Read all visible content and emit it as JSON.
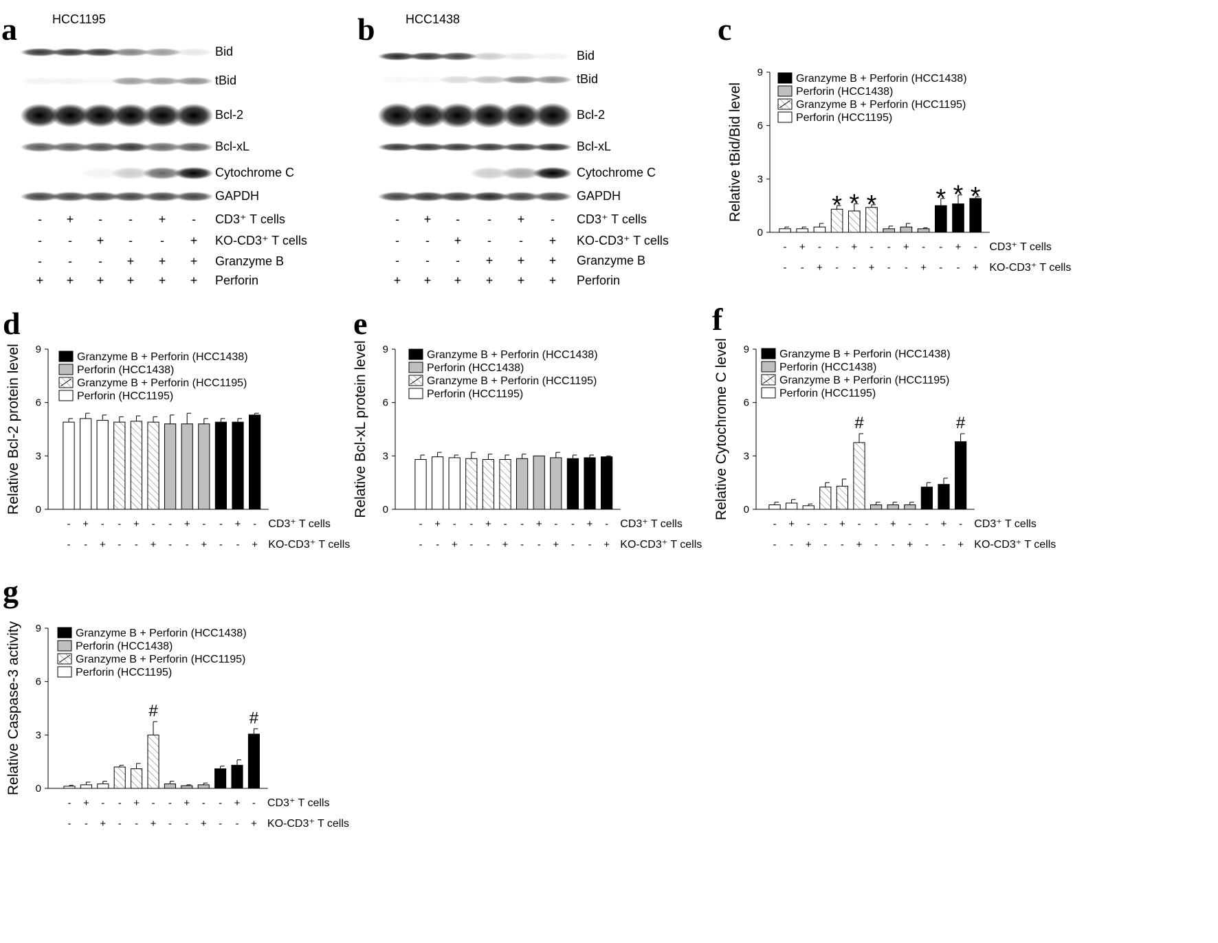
{
  "panel_labels": [
    "a",
    "b",
    "c",
    "d",
    "e",
    "f",
    "g"
  ],
  "blot_a": {
    "title": "HCC1195",
    "proteins": [
      "Bid",
      "tBid",
      "Bcl-2",
      "Bcl-xL",
      "Cytochrome C",
      "GAPDH"
    ],
    "intensities": [
      [
        0.8,
        0.8,
        0.8,
        0.5,
        0.4,
        0.1
      ],
      [
        0.05,
        0.05,
        0.03,
        0.4,
        0.4,
        0.45
      ],
      [
        1,
        1,
        1,
        1,
        1,
        1
      ],
      [
        0.65,
        0.65,
        0.7,
        0.8,
        0.6,
        0.65
      ],
      [
        0,
        0,
        0.05,
        0.2,
        0.6,
        1
      ],
      [
        0.75,
        0.75,
        0.75,
        0.75,
        0.75,
        0.75
      ]
    ],
    "rows": [
      {
        "label": "CD3⁺ T cells",
        "signs": [
          "-",
          "+",
          "-",
          "-",
          "+",
          "-"
        ]
      },
      {
        "label": "KO-CD3⁺ T cells",
        "signs": [
          "-",
          "-",
          "+",
          "-",
          "-",
          "+"
        ]
      },
      {
        "label": "Granzyme  B",
        "signs": [
          "-",
          "-",
          "-",
          "+",
          "+",
          "+"
        ]
      },
      {
        "label": "Perforin",
        "signs": [
          "+",
          "+",
          "+",
          "+",
          "+",
          "+"
        ]
      }
    ]
  },
  "blot_b": {
    "title": "HCC1438",
    "proteins": [
      "Bid",
      "tBid",
      "Bcl-2",
      "Bcl-xL",
      "Cytochrome C",
      "GAPDH"
    ],
    "intensities": [
      [
        0.85,
        0.8,
        0.75,
        0.2,
        0.1,
        0.05
      ],
      [
        0.03,
        0.03,
        0.15,
        0.25,
        0.5,
        0.45
      ],
      [
        1,
        1,
        1,
        1,
        1,
        1
      ],
      [
        0.8,
        0.8,
        0.8,
        0.8,
        0.8,
        0.85
      ],
      [
        0,
        0,
        0,
        0.2,
        0.35,
        1
      ],
      [
        0.75,
        0.8,
        0.8,
        0.85,
        0.75,
        0.75
      ]
    ],
    "rows": [
      {
        "label": "CD3⁺ T cells",
        "signs": [
          "-",
          "+",
          "-",
          "-",
          "+",
          "-"
        ]
      },
      {
        "label": "KO-CD3⁺ T cells",
        "signs": [
          "-",
          "-",
          "+",
          "-",
          "-",
          "+"
        ]
      },
      {
        "label": "Granzyme  B",
        "signs": [
          "-",
          "-",
          "-",
          "+",
          "+",
          "+"
        ]
      },
      {
        "label": "Perforin",
        "signs": [
          "+",
          "+",
          "+",
          "+",
          "+",
          "+"
        ]
      }
    ]
  },
  "colors": {
    "black": "#000000",
    "gray": "#bfbfbf",
    "white": "#ffffff",
    "hatch": "#888888"
  },
  "chart_data": [
    {
      "id": "c",
      "type": "bar",
      "ylabel": "Relative  tBid/Bid level",
      "ylim": [
        0,
        9
      ],
      "yticks": [
        0,
        3,
        6,
        9
      ],
      "legend": [
        "Granzyme  B + Perforin (HCC1438)",
        "Perforin (HCC1438)",
        "Granzyme  B + Perforin (HCC1195)",
        "Perforin (HCC1195)"
      ],
      "row_labels": [
        "CD3⁺ T cells",
        "KO-CD3⁺ T cells"
      ],
      "cd3": [
        "-",
        "+",
        "-",
        "-",
        "+",
        "-",
        "-",
        "+",
        "-",
        "-",
        "+",
        "-"
      ],
      "ko": [
        "-",
        "-",
        "+",
        "-",
        "-",
        "+",
        "-",
        "-",
        "+",
        "-",
        "-",
        "+"
      ],
      "series": [
        {
          "name": "Perforin (HCC1195)",
          "fill": "white",
          "values": [
            0.2,
            0.2,
            0.3
          ],
          "errors": [
            0.1,
            0.1,
            0.2
          ],
          "marks": [
            "",
            "",
            ""
          ]
        },
        {
          "name": "Granzyme  B + Perforin (HCC1195)",
          "fill": "hatch",
          "values": [
            1.3,
            1.2,
            1.4
          ],
          "errors": [
            0.2,
            0.4,
            0.15
          ],
          "marks": [
            "*",
            "*",
            "*"
          ]
        },
        {
          "name": "Perforin (HCC1438)",
          "fill": "gray",
          "values": [
            0.2,
            0.3,
            0.2
          ],
          "errors": [
            0.15,
            0.2,
            0.05
          ],
          "marks": [
            "",
            "",
            ""
          ]
        },
        {
          "name": "Granzyme  B + Perforin (HCC1438)",
          "fill": "black",
          "values": [
            1.5,
            1.6,
            1.9
          ],
          "errors": [
            0.4,
            0.5,
            0.1
          ],
          "marks": [
            "*",
            "*",
            "*"
          ]
        }
      ]
    },
    {
      "id": "d",
      "type": "bar",
      "ylabel": "Relative  Bcl-2  protein  level",
      "ylim": [
        0,
        9
      ],
      "yticks": [
        0,
        3,
        6,
        9
      ],
      "legend": [
        "Granzyme  B + Perforin (HCC1438)",
        "Perforin (HCC1438)",
        "Granzyme  B + Perforin (HCC1195)",
        "Perforin (HCC1195)"
      ],
      "row_labels": [
        "CD3⁺ T cells",
        "KO-CD3⁺ T cells"
      ],
      "cd3": [
        "-",
        "+",
        "-",
        "-",
        "+",
        "-",
        "-",
        "+",
        "-",
        "-",
        "+",
        "-"
      ],
      "ko": [
        "-",
        "-",
        "+",
        "-",
        "-",
        "+",
        "-",
        "-",
        "+",
        "-",
        "-",
        "+"
      ],
      "series": [
        {
          "name": "Perforin (HCC1195)",
          "fill": "white",
          "values": [
            4.9,
            5.1,
            5.0
          ],
          "errors": [
            0.2,
            0.3,
            0.3
          ],
          "marks": [
            "",
            "",
            ""
          ]
        },
        {
          "name": "Granzyme  B + Perforin (HCC1195)",
          "fill": "hatch",
          "values": [
            4.9,
            4.95,
            4.9
          ],
          "errors": [
            0.3,
            0.3,
            0.3
          ],
          "marks": [
            "",
            "",
            ""
          ]
        },
        {
          "name": "Perforin (HCC1438)",
          "fill": "gray",
          "values": [
            4.8,
            4.8,
            4.8
          ],
          "errors": [
            0.5,
            0.6,
            0.3
          ],
          "marks": [
            "",
            "",
            ""
          ]
        },
        {
          "name": "Granzyme  B + Perforin (HCC1438)",
          "fill": "black",
          "values": [
            4.9,
            4.9,
            5.3
          ],
          "errors": [
            0.2,
            0.2,
            0.1
          ],
          "marks": [
            "",
            "",
            ""
          ]
        }
      ]
    },
    {
      "id": "e",
      "type": "bar",
      "ylabel": "Relative  Bcl-xL  protein  level",
      "ylim": [
        0,
        9
      ],
      "yticks": [
        0,
        3,
        6,
        9
      ],
      "legend": [
        "Granzyme  B + Perforin (HCC1438)",
        "Perforin (HCC1438)",
        "Granzyme  B + Perforin (HCC1195)",
        "Perforin (HCC1195)"
      ],
      "row_labels": [
        "CD3⁺ T cells",
        "KO-CD3⁺ T cells"
      ],
      "cd3": [
        "-",
        "+",
        "-",
        "-",
        "+",
        "-",
        "-",
        "+",
        "-",
        "-",
        "+",
        "-"
      ],
      "ko": [
        "-",
        "-",
        "+",
        "-",
        "-",
        "+",
        "-",
        "-",
        "+",
        "-",
        "-",
        "+"
      ],
      "series": [
        {
          "name": "Perforin (HCC1195)",
          "fill": "white",
          "values": [
            2.8,
            2.95,
            2.9
          ],
          "errors": [
            0.25,
            0.25,
            0.15
          ],
          "marks": [
            "",
            "",
            ""
          ]
        },
        {
          "name": "Granzyme  B + Perforin (HCC1195)",
          "fill": "hatch",
          "values": [
            2.85,
            2.8,
            2.8
          ],
          "errors": [
            0.35,
            0.3,
            0.25
          ],
          "marks": [
            "",
            "",
            ""
          ]
        },
        {
          "name": "Perforin (HCC1438)",
          "fill": "gray",
          "values": [
            2.85,
            3.0,
            2.9
          ],
          "errors": [
            0.25,
            0.0,
            0.3
          ],
          "marks": [
            "",
            "",
            ""
          ]
        },
        {
          "name": "Granzyme  B + Perforin (HCC1438)",
          "fill": "black",
          "values": [
            2.85,
            2.9,
            2.95
          ],
          "errors": [
            0.2,
            0.15,
            0.05
          ],
          "marks": [
            "",
            "",
            ""
          ]
        }
      ]
    },
    {
      "id": "f",
      "type": "bar",
      "ylabel": "Relative  Cytochrome  C  level",
      "ylim": [
        0,
        9
      ],
      "yticks": [
        0,
        3,
        6,
        9
      ],
      "legend": [
        "Granzyme  B + Perforin (HCC1438)",
        "Perforin (HCC1438)",
        "Granzyme  B + Perforin (HCC1195)",
        "Perforin (HCC1195)"
      ],
      "row_labels": [
        "CD3⁺ T cells",
        "KO-CD3⁺ T cells"
      ],
      "cd3": [
        "-",
        "+",
        "-",
        "-",
        "+",
        "-",
        "-",
        "+",
        "-",
        "-",
        "+",
        "-"
      ],
      "ko": [
        "-",
        "-",
        "+",
        "-",
        "-",
        "+",
        "-",
        "-",
        "+",
        "-",
        "-",
        "+"
      ],
      "series": [
        {
          "name": "Perforin (HCC1195)",
          "fill": "white",
          "values": [
            0.25,
            0.35,
            0.2
          ],
          "errors": [
            0.15,
            0.2,
            0.1
          ],
          "marks": [
            "",
            "",
            ""
          ]
        },
        {
          "name": "Granzyme  B + Perforin (HCC1195)",
          "fill": "hatch",
          "values": [
            1.25,
            1.3,
            3.75
          ],
          "errors": [
            0.25,
            0.4,
            0.5
          ],
          "marks": [
            "",
            "",
            "#"
          ]
        },
        {
          "name": "Perforin (HCC1438)",
          "fill": "gray",
          "values": [
            0.25,
            0.25,
            0.25
          ],
          "errors": [
            0.15,
            0.15,
            0.15
          ],
          "marks": [
            "",
            "",
            ""
          ]
        },
        {
          "name": "Granzyme  B + Perforin (HCC1438)",
          "fill": "black",
          "values": [
            1.25,
            1.4,
            3.8
          ],
          "errors": [
            0.25,
            0.35,
            0.45
          ],
          "marks": [
            "",
            "",
            "#"
          ]
        }
      ]
    },
    {
      "id": "g",
      "type": "bar",
      "ylabel": "Relative  Caspase-3  activity",
      "ylim": [
        0,
        9
      ],
      "yticks": [
        0,
        3,
        6,
        9
      ],
      "legend": [
        "Granzyme  B + Perforin (HCC1438)",
        "Perforin (HCC1438)",
        "Granzyme  B + Perforin (HCC1195)",
        "Perforin (HCC1195)"
      ],
      "row_labels": [
        "CD3⁺ T cells",
        "KO-CD3⁺ T cells"
      ],
      "cd3": [
        "-",
        "+",
        "-",
        "-",
        "+",
        "-",
        "-",
        "+",
        "-",
        "-",
        "+",
        "-"
      ],
      "ko": [
        "-",
        "-",
        "+",
        "-",
        "-",
        "+",
        "-",
        "-",
        "+",
        "-",
        "-",
        "+"
      ],
      "series": [
        {
          "name": "Perforin (HCC1195)",
          "fill": "white",
          "values": [
            0.12,
            0.2,
            0.25
          ],
          "errors": [
            0.05,
            0.15,
            0.15
          ],
          "marks": [
            "",
            "",
            ""
          ]
        },
        {
          "name": "Granzyme  B + Perforin (HCC1195)",
          "fill": "hatch",
          "values": [
            1.2,
            1.1,
            3.0
          ],
          "errors": [
            0.1,
            0.3,
            0.75
          ],
          "marks": [
            "",
            "",
            "#"
          ]
        },
        {
          "name": "Perforin (HCC1438)",
          "fill": "gray",
          "values": [
            0.25,
            0.15,
            0.2
          ],
          "errors": [
            0.15,
            0.05,
            0.1
          ],
          "marks": [
            "",
            "",
            ""
          ]
        },
        {
          "name": "Granzyme  B + Perforin (HCC1438)",
          "fill": "black",
          "values": [
            1.1,
            1.3,
            3.05
          ],
          "errors": [
            0.15,
            0.3,
            0.3
          ],
          "marks": [
            "",
            "",
            "#"
          ]
        }
      ]
    }
  ]
}
